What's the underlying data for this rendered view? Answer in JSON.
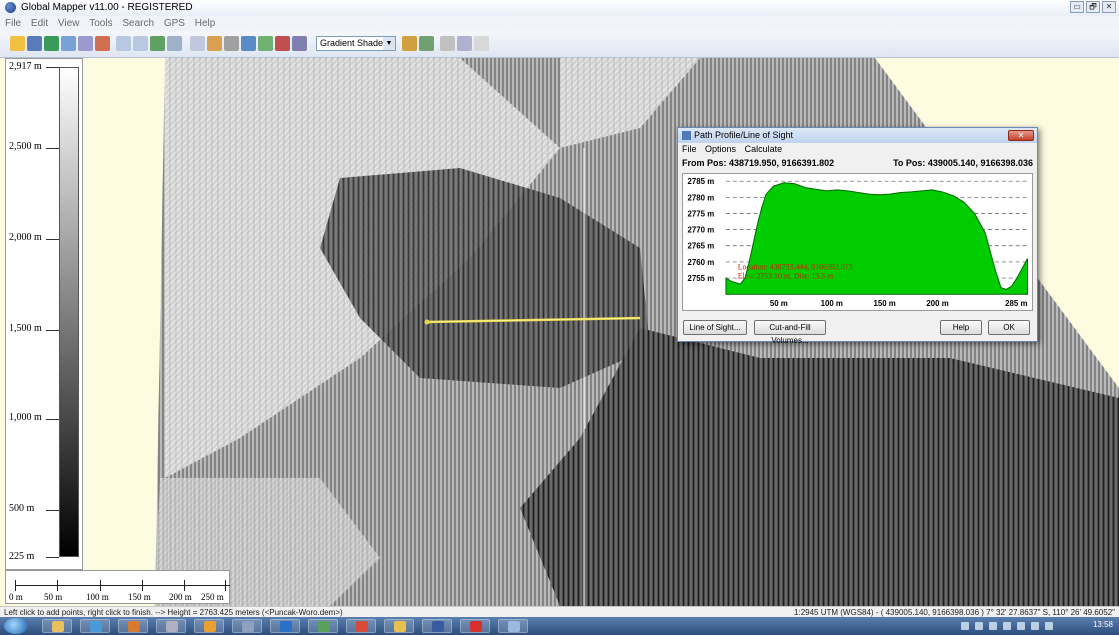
{
  "window": {
    "title": "Global Mapper v11.00 - REGISTERED",
    "controls": [
      "▭",
      "🗗",
      "✕"
    ]
  },
  "menu": [
    "File",
    "Edit",
    "View",
    "Tools",
    "Search",
    "GPS",
    "Help"
  ],
  "toolbar": {
    "shader_select": "Gradient Shader"
  },
  "elevation_legend": [
    "2,917 m",
    "2,500 m",
    "2,000 m",
    "1,500 m",
    "1,000 m",
    "500 m",
    "225 m"
  ],
  "scale_bar": [
    "0 m",
    "50 m",
    "100 m",
    "150 m",
    "200 m",
    "250 m"
  ],
  "dialog": {
    "title": "Path Profile/Line of Sight",
    "menu": [
      "File",
      "Options",
      "Calculate"
    ],
    "from_pos": "From Pos: 438719.950, 9166391.802",
    "to_pos": "To Pos: 439005.140, 9166398.036",
    "close": "✕",
    "location_line1": "Location: 438733.444, 9166392.073",
    "location_line2": "Elev: 2753.10 m, Dist: 13.5 m",
    "buttons": {
      "line_of_sight": "Line of Sight...",
      "cut_fill": "Cut-and-Fill Volumes...",
      "help": "Help",
      "ok": "OK"
    }
  },
  "chart_data": {
    "type": "area",
    "title": "",
    "xlabel": "",
    "ylabel": "",
    "ylim": [
      2750,
      2786
    ],
    "xlim": [
      0,
      285
    ],
    "y_ticks": [
      "2785 m",
      "2780 m",
      "2775 m",
      "2770 m",
      "2765 m",
      "2760 m",
      "2755 m"
    ],
    "y_tick_values": [
      2785,
      2780,
      2775,
      2770,
      2765,
      2760,
      2755
    ],
    "x_ticks": [
      "50 m",
      "100 m",
      "150 m",
      "200 m",
      "285 m"
    ],
    "x_tick_values": [
      50,
      100,
      150,
      200,
      285
    ],
    "series": [
      {
        "color": "#00cc00",
        "x": [
          0,
          5,
          10,
          13.5,
          18,
          22,
          26,
          30,
          34,
          38,
          45,
          55,
          65,
          75,
          85,
          95,
          105,
          115,
          125,
          135,
          145,
          155,
          165,
          175,
          185,
          195,
          205,
          215,
          225,
          235,
          245,
          250,
          255,
          260,
          265,
          270,
          275,
          280,
          285
        ],
        "y": [
          2755,
          2754,
          2753.5,
          2753.1,
          2755,
          2760,
          2766,
          2772,
          2777,
          2781,
          2783.5,
          2784.5,
          2784.2,
          2783,
          2782.5,
          2782,
          2782.3,
          2782,
          2781.5,
          2781,
          2780.8,
          2781,
          2781.5,
          2781.7,
          2782,
          2782.3,
          2781.6,
          2780.5,
          2778.5,
          2775,
          2769,
          2763,
          2757,
          2752,
          2751.5,
          2752.5,
          2755,
          2758,
          2761
        ]
      }
    ]
  },
  "status": {
    "left": "Left click to add points, right click to finish. --> Height = 2763.425 meters (<Puncak-Woro.dem>)",
    "right": "1:2945  UTM (WGS84) - ( 439005.140, 9166398.036 )  7° 32' 27.8637\" S, 110° 26' 49.6052\""
  },
  "taskbar": {
    "clock": "13:58"
  }
}
